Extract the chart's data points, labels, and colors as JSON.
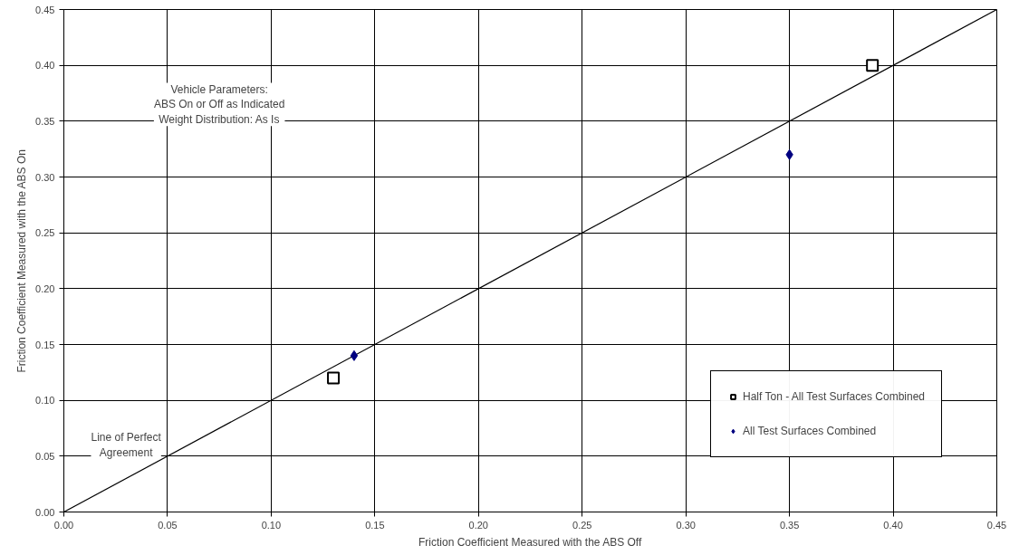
{
  "chart_data": {
    "type": "scatter",
    "xlabel": "Friction Coefficient Measured with the ABS Off",
    "ylabel": "Friction Coefficient Measured with the ABS On",
    "xlim": [
      0,
      0.45
    ],
    "ylim": [
      0,
      0.45
    ],
    "xticks": [
      {
        "value": 0,
        "label": "0.00"
      },
      {
        "value": 0.05,
        "label": "0.05"
      },
      {
        "value": 0.1,
        "label": "0.10"
      },
      {
        "value": 0.15,
        "label": "0.15"
      },
      {
        "value": 0.2,
        "label": "0.20"
      },
      {
        "value": 0.25,
        "label": "0.25"
      },
      {
        "value": 0.3,
        "label": "0.30"
      },
      {
        "value": 0.35,
        "label": "0.35"
      },
      {
        "value": 0.4,
        "label": "0.40"
      },
      {
        "value": 0.45,
        "label": "0.45"
      }
    ],
    "yticks": [
      {
        "value": 0,
        "label": "0.00"
      },
      {
        "value": 0.05,
        "label": "0.05"
      },
      {
        "value": 0.1,
        "label": "0.10"
      },
      {
        "value": 0.15,
        "label": "0.15"
      },
      {
        "value": 0.2,
        "label": "0.20"
      },
      {
        "value": 0.25,
        "label": "0.25"
      },
      {
        "value": 0.3,
        "label": "0.30"
      },
      {
        "value": 0.35,
        "label": "0.35"
      },
      {
        "value": 0.4,
        "label": "0.40"
      },
      {
        "value": 0.45,
        "label": "0.45"
      }
    ],
    "grid": true,
    "legend": "bottom right",
    "series": [
      {
        "type": "line",
        "color": "#000000",
        "x": [
          0,
          0.45
        ],
        "values": [
          0,
          0.45
        ]
      },
      {
        "name": "Half Ton - All Test Surfaces Combined",
        "color": "#000000",
        "marker": "square",
        "x": [
          0.13,
          0.39
        ],
        "values": [
          0.12,
          0.4
        ]
      },
      {
        "name": "All Test Surfaces Combined",
        "color": "#000080",
        "marker": "diamond",
        "x": [
          0.14,
          0.35
        ],
        "values": [
          0.14,
          0.32
        ]
      }
    ],
    "annotations": [
      "Vehicle Parameters:\nABS On or Off as Indicated\nWeight Distribution: As Is",
      "Line of Perfect\nAgreement"
    ]
  }
}
